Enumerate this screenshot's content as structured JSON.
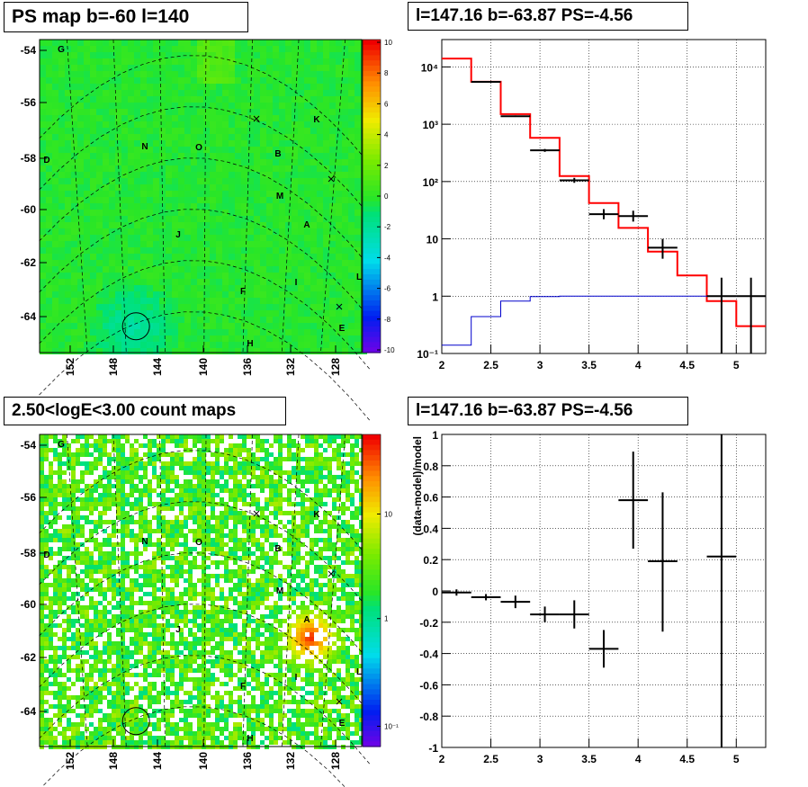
{
  "panels": {
    "tl_title": "PS map b=-60 l=140",
    "tr_title": "l=147.16 b=-63.87 PS=-4.56",
    "bl_title": "2.50<logE<3.00 count maps",
    "br_title": "l=147.16 b=-63.87 PS=-4.56"
  },
  "sky_axes": {
    "lat_ticks": [
      "-54",
      "-56",
      "-58",
      "-60",
      "-62",
      "-64"
    ],
    "lon_ticks": [
      "152",
      "148",
      "144",
      "140",
      "136",
      "132",
      "128"
    ],
    "markers": [
      "G",
      "N",
      "O",
      "D",
      "B",
      "K",
      "M",
      "A",
      "J",
      "F",
      "I",
      "L",
      "E",
      "H"
    ]
  },
  "colorbar_ps": {
    "ticks": [
      "10",
      "8",
      "6",
      "4",
      "2",
      "0",
      "-2",
      "-4",
      "-6",
      "-8",
      "-10"
    ]
  },
  "colorbar_counts": {
    "ticks": [
      "10",
      "1",
      "10⁻¹"
    ],
    "scale": "log"
  },
  "chart_data": [
    {
      "type": "heatmap",
      "title": "PS map b=-60 l=140",
      "xlabel": "",
      "ylabel": "",
      "lon_range": [
        155,
        125
      ],
      "lat_range": [
        -65,
        -53
      ],
      "zlim": [
        -10,
        10
      ],
      "source_circle": {
        "l": 147.16,
        "b": -63.87
      }
    },
    {
      "type": "line",
      "title": "l=147.16 b=-63.87 PS=-4.56",
      "xlabel": "",
      "ylabel": "",
      "xlim": [
        2,
        5.3
      ],
      "ylim": [
        0.1,
        30000
      ],
      "yscale": "log",
      "x_ticks": [
        "2",
        "2.5",
        "3",
        "3.5",
        "4",
        "4.5",
        "5"
      ],
      "y_ticks": [
        "10⁻¹",
        "1",
        "10",
        "10²",
        "10³",
        "10⁴"
      ],
      "series": [
        {
          "color": "#ff0000",
          "edges": [
            2.0,
            2.3,
            2.6,
            2.9,
            3.2,
            3.5,
            3.8,
            4.1,
            4.4,
            4.7,
            5.0,
            5.3
          ],
          "values": [
            14000,
            5500,
            1500,
            580,
            125,
            42,
            15.5,
            6,
            2.3,
            0.82,
            0.3
          ]
        },
        {
          "color": "#0000cc",
          "edges": [
            2.0,
            2.3,
            2.6,
            2.9,
            3.2,
            3.5,
            3.8,
            4.1,
            4.4,
            4.7,
            5.0,
            5.3
          ],
          "values": [
            0.14,
            0.44,
            0.82,
            0.98,
            1,
            1,
            1,
            1,
            1,
            1,
            1
          ]
        }
      ],
      "points": [
        {
          "x": 2.45,
          "y": 5500,
          "xerr": 0.15,
          "ylo": 5400,
          "yhi": 5600
        },
        {
          "x": 2.75,
          "y": 1380,
          "xerr": 0.15,
          "ylo": 1340,
          "yhi": 1420
        },
        {
          "x": 3.05,
          "y": 350,
          "xerr": 0.15,
          "ylo": 330,
          "yhi": 370
        },
        {
          "x": 3.35,
          "y": 105,
          "xerr": 0.15,
          "ylo": 95,
          "yhi": 116
        },
        {
          "x": 3.65,
          "y": 27,
          "xerr": 0.15,
          "ylo": 22,
          "yhi": 33
        },
        {
          "x": 3.95,
          "y": 25,
          "xerr": 0.15,
          "ylo": 20,
          "yhi": 31
        },
        {
          "x": 4.25,
          "y": 7,
          "xerr": 0.15,
          "ylo": 4.5,
          "yhi": 10
        },
        {
          "x": 4.85,
          "y": 1,
          "xerr": 0.15,
          "ylo": 0.1,
          "yhi": 2.1
        },
        {
          "x": 5.15,
          "y": 1,
          "xerr": 0.15,
          "ylo": 0.1,
          "yhi": 2.1
        }
      ]
    },
    {
      "type": "heatmap",
      "title": "2.50<logE<3.00 count maps",
      "xlabel": "",
      "ylabel": "",
      "lon_range": [
        155,
        125
      ],
      "lat_range": [
        -65,
        -53
      ],
      "zscale": "log",
      "source_circle": {
        "l": 147.16,
        "b": -63.87
      },
      "hotspot": {
        "l": 130,
        "b": -60.6
      }
    },
    {
      "type": "scatter",
      "title": "l=147.16 b=-63.87 PS=-4.56",
      "xlabel": "",
      "ylabel": "(data-model)/model",
      "xlim": [
        2,
        5.3
      ],
      "ylim": [
        -1,
        1
      ],
      "x_ticks": [
        "2",
        "2.5",
        "3",
        "3.5",
        "4",
        "4.5",
        "5"
      ],
      "y_ticks": [
        "1",
        "0.8",
        "0.6",
        "0.4",
        "0.2",
        "0",
        "-0.2",
        "-0.4",
        "-0.6",
        "-0.8",
        "-1"
      ],
      "points": [
        {
          "x": 2.15,
          "y": -0.01,
          "xerr": 0.15,
          "ylo": -0.03,
          "yhi": 0.01
        },
        {
          "x": 2.45,
          "y": -0.04,
          "xerr": 0.15,
          "ylo": -0.06,
          "yhi": -0.02
        },
        {
          "x": 2.75,
          "y": -0.07,
          "xerr": 0.15,
          "ylo": -0.11,
          "yhi": -0.03
        },
        {
          "x": 3.05,
          "y": -0.15,
          "xerr": 0.15,
          "ylo": -0.2,
          "yhi": -0.1
        },
        {
          "x": 3.35,
          "y": -0.15,
          "xerr": 0.15,
          "ylo": -0.24,
          "yhi": -0.06
        },
        {
          "x": 3.65,
          "y": -0.37,
          "xerr": 0.15,
          "ylo": -0.49,
          "yhi": -0.25
        },
        {
          "x": 3.95,
          "y": 0.58,
          "xerr": 0.15,
          "ylo": 0.27,
          "yhi": 0.89
        },
        {
          "x": 4.25,
          "y": 0.19,
          "xerr": 0.15,
          "ylo": -0.26,
          "yhi": 0.63
        },
        {
          "x": 4.85,
          "y": 0.22,
          "xerr": 0.15,
          "ylo": -1.0,
          "yhi": 1.0
        }
      ]
    }
  ]
}
